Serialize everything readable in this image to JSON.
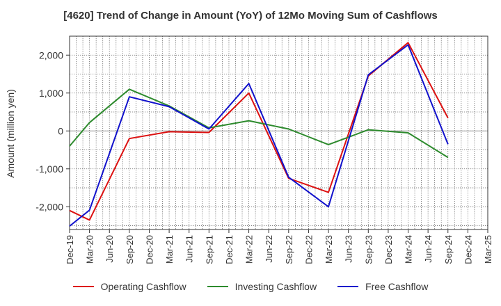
{
  "chart_data": {
    "type": "line",
    "title": "[4620]  Trend of Change in Amount (YoY) of 12Mo Moving Sum of Cashflows",
    "xlabel": "",
    "ylabel": "Amount (million yen)",
    "ylim": [
      -2600,
      2500
    ],
    "yticks": [
      2000,
      1000,
      0,
      -1000,
      -2000
    ],
    "ytick_labels": [
      "2,000",
      "1,000",
      "0",
      "-1,000",
      "-2,000"
    ],
    "categories": [
      "Dec-19",
      "Mar-20",
      "Jun-20",
      "Sep-20",
      "Dec-20",
      "Mar-21",
      "Jun-21",
      "Sep-21",
      "Dec-21",
      "Mar-22",
      "Jun-22",
      "Sep-22",
      "Dec-22",
      "Mar-23",
      "Jun-23",
      "Sep-23",
      "Dec-23",
      "Mar-24",
      "Jun-24",
      "Sep-24",
      "Dec-24",
      "Mar-25"
    ],
    "grid": true,
    "legend_position": "bottom",
    "series": [
      {
        "name": "Operating Cashflow",
        "color": "#dd1111",
        "values": [
          -2100,
          -2350,
          null,
          -200,
          null,
          -20,
          null,
          -40,
          null,
          1000,
          null,
          -1250,
          null,
          -1620,
          null,
          1450,
          null,
          2330,
          null,
          340,
          null,
          null
        ]
      },
      {
        "name": "Investing Cashflow",
        "color": "#2e8b2e",
        "values": [
          -400,
          220,
          null,
          1100,
          null,
          660,
          null,
          80,
          null,
          270,
          null,
          50,
          null,
          -360,
          null,
          30,
          null,
          -50,
          null,
          -700,
          null,
          null
        ]
      },
      {
        "name": "Free Cashflow",
        "color": "#1111cc",
        "values": [
          -2510,
          -2090,
          null,
          900,
          null,
          640,
          null,
          50,
          null,
          1250,
          null,
          -1220,
          null,
          -2000,
          null,
          1480,
          null,
          2270,
          null,
          -350,
          null,
          null
        ]
      }
    ]
  }
}
